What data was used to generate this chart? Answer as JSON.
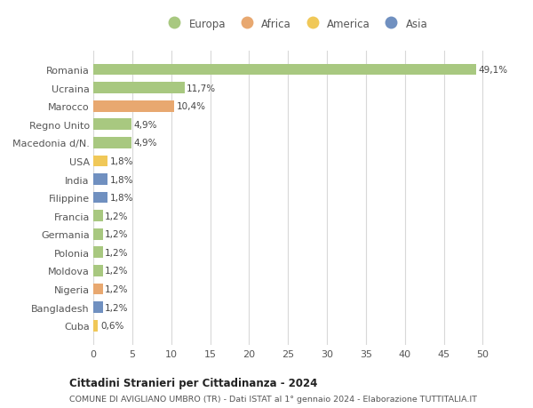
{
  "countries": [
    "Romania",
    "Ucraina",
    "Marocco",
    "Regno Unito",
    "Macedonia d/N.",
    "USA",
    "India",
    "Filippine",
    "Francia",
    "Germania",
    "Polonia",
    "Moldova",
    "Nigeria",
    "Bangladesh",
    "Cuba"
  ],
  "values": [
    49.1,
    11.7,
    10.4,
    4.9,
    4.9,
    1.8,
    1.8,
    1.8,
    1.2,
    1.2,
    1.2,
    1.2,
    1.2,
    1.2,
    0.6
  ],
  "labels": [
    "49,1%",
    "11,7%",
    "10,4%",
    "4,9%",
    "4,9%",
    "1,8%",
    "1,8%",
    "1,8%",
    "1,2%",
    "1,2%",
    "1,2%",
    "1,2%",
    "1,2%",
    "1,2%",
    "0,6%"
  ],
  "continents": [
    "Europa",
    "Europa",
    "Africa",
    "Europa",
    "Europa",
    "America",
    "Asia",
    "Asia",
    "Europa",
    "Europa",
    "Europa",
    "Europa",
    "Africa",
    "Asia",
    "America"
  ],
  "colors": {
    "Europa": "#a8c880",
    "Africa": "#e8a870",
    "America": "#f0c858",
    "Asia": "#7090c0"
  },
  "legend_order": [
    "Europa",
    "Africa",
    "America",
    "Asia"
  ],
  "title1": "Cittadini Stranieri per Cittadinanza - 2024",
  "title2": "COMUNE DI AVIGLIANO UMBRO (TR) - Dati ISTAT al 1° gennaio 2024 - Elaborazione TUTTITALIA.IT",
  "xlim": [
    0,
    52
  ],
  "xticks": [
    0,
    5,
    10,
    15,
    20,
    25,
    30,
    35,
    40,
    45,
    50
  ],
  "bg_color": "#ffffff",
  "grid_color": "#d8d8d8"
}
